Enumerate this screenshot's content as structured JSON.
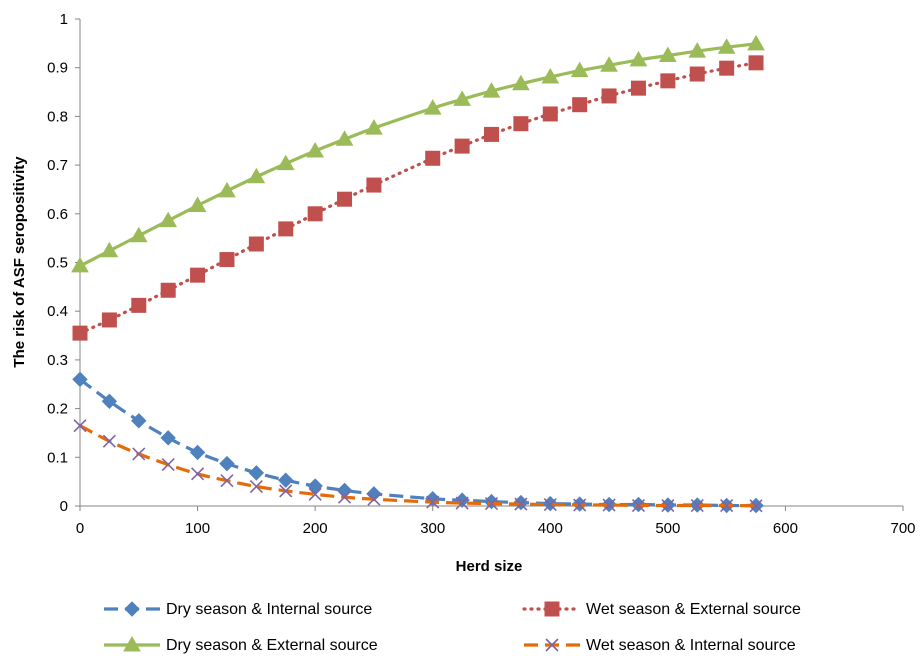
{
  "chart_data": {
    "type": "line",
    "xlabel": "Herd size",
    "ylabel": "The risk of ASF seropositivity",
    "xlim": [
      0,
      700
    ],
    "ylim": [
      0,
      1
    ],
    "x_ticks": [
      "0",
      "100",
      "200",
      "300",
      "400",
      "500",
      "600",
      "700"
    ],
    "y_ticks": [
      "0",
      "0.1",
      "0.2",
      "0.3",
      "0.4",
      "0.5",
      "0.6",
      "0.7",
      "0.8",
      "0.9",
      "1"
    ],
    "grid": false,
    "legend_position": "bottom",
    "x": [
      0,
      25,
      50,
      75,
      100,
      125,
      150,
      175,
      200,
      225,
      250,
      300,
      325,
      350,
      375,
      400,
      425,
      450,
      475,
      500,
      525,
      550,
      575
    ],
    "series": [
      {
        "name": "Dry season & Internal source",
        "color": "#4F81BD",
        "line_style": "dashed",
        "marker": "diamond",
        "values": [
          0.26,
          0.215,
          0.175,
          0.14,
          0.11,
          0.087,
          0.068,
          0.053,
          0.041,
          0.032,
          0.025,
          0.015,
          0.012,
          0.009,
          0.007,
          0.005,
          0.004,
          0.003,
          0.003,
          0.002,
          0.002,
          0.001,
          0.001
        ]
      },
      {
        "name": "Wet season & External source",
        "color": "#C0504D",
        "line_style": "dotted",
        "marker": "square",
        "values": [
          0.355,
          0.382,
          0.412,
          0.443,
          0.474,
          0.506,
          0.538,
          0.569,
          0.6,
          0.63,
          0.659,
          0.714,
          0.739,
          0.763,
          0.785,
          0.805,
          0.824,
          0.842,
          0.858,
          0.873,
          0.887,
          0.899,
          0.91
        ]
      },
      {
        "name": "Dry season & External source",
        "color": "#9BBB59",
        "line_style": "solid",
        "marker": "triangle",
        "values": [
          0.493,
          0.524,
          0.555,
          0.586,
          0.617,
          0.647,
          0.676,
          0.703,
          0.729,
          0.753,
          0.776,
          0.817,
          0.835,
          0.852,
          0.867,
          0.881,
          0.894,
          0.905,
          0.916,
          0.925,
          0.934,
          0.942,
          0.949
        ]
      },
      {
        "name": "Wet season & Internal source",
        "color": "#E36C09",
        "marker_color": "#8064A2",
        "line_style": "dashed",
        "marker": "x",
        "values": [
          0.165,
          0.133,
          0.107,
          0.085,
          0.066,
          0.052,
          0.04,
          0.031,
          0.024,
          0.018,
          0.014,
          0.008,
          0.006,
          0.005,
          0.004,
          0.003,
          0.002,
          0.002,
          0.001,
          0.001,
          0.001,
          0.001,
          0.0005
        ]
      }
    ]
  }
}
